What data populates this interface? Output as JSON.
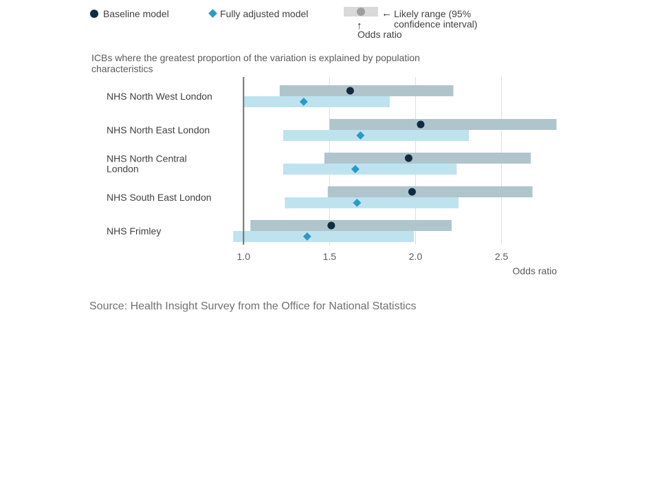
{
  "legend": {
    "baseline_label": "Baseline model",
    "adjusted_label": "Fully adjusted model",
    "range_label_line1": "Likely range (95%",
    "range_label_line2": "confidence interval)",
    "odds_label": "Odds ratio"
  },
  "panel_title": "ICBs where the greatest proportion of the variation is explained by population characteristics",
  "source": "Source: Health Insight Survey from the Office for National Statistics",
  "colors": {
    "baseline_point": "#0f2c40",
    "baseline_ci": "#b0c4cc",
    "adjusted_point": "#2a9bc8",
    "adjusted_ci": "#bee3ef",
    "reference_line": "#707070",
    "grid": "#dcdcdc"
  },
  "chart_data": {
    "type": "scatter",
    "subtype": "forest-plot",
    "categories": [
      [
        "NHS North West London"
      ],
      [
        "NHS North East London"
      ],
      [
        "NHS North Central",
        "London"
      ],
      [
        "NHS South East London"
      ],
      [
        "NHS Frimley"
      ]
    ],
    "series": [
      {
        "name": "Baseline model",
        "values": [
          1.62,
          2.03,
          1.96,
          1.98,
          1.51
        ],
        "ci_low": [
          1.21,
          1.5,
          1.47,
          1.49,
          1.04
        ],
        "ci_high": [
          2.22,
          2.82,
          2.67,
          2.68,
          2.21
        ]
      },
      {
        "name": "Fully adjusted model",
        "values": [
          1.35,
          1.68,
          1.65,
          1.66,
          1.37
        ],
        "ci_low": [
          1.0,
          1.23,
          1.23,
          1.24,
          0.94
        ],
        "ci_high": [
          1.85,
          2.31,
          2.24,
          2.25,
          1.99
        ]
      }
    ],
    "x_ticks": [
      "1.0",
      "1.5",
      "2.0",
      "2.5"
    ],
    "x_tick_values": [
      1.0,
      1.5,
      2.0,
      2.5
    ],
    "xlabel": "Odds ratio",
    "xlim": [
      0.935,
      2.83
    ],
    "reference_value": 1.0,
    "grid": true
  }
}
